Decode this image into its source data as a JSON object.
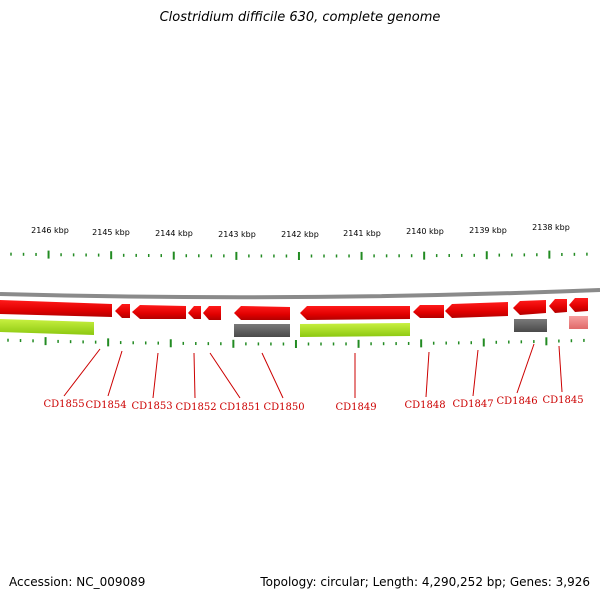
{
  "title": "Clostridium difficile 630, complete genome",
  "footer": {
    "accession": "Accession: NC_009089",
    "summary": "Topology: circular; Length: 4,290,252 bp; Genes: 3,926"
  },
  "scale_labels": [
    "2146 kbp",
    "2145 kbp",
    "2144 kbp",
    "2143 kbp",
    "2142 kbp",
    "2141 kbp",
    "2140 kbp",
    "2139 kbp",
    "2138 kbp"
  ],
  "genes": [
    {
      "name": "CD1855"
    },
    {
      "name": "CD1854"
    },
    {
      "name": "CD1853"
    },
    {
      "name": "CD1852"
    },
    {
      "name": "CD1851"
    },
    {
      "name": "CD1850"
    },
    {
      "name": "CD1849"
    },
    {
      "name": "CD1848"
    },
    {
      "name": "CD1847"
    },
    {
      "name": "CD1846"
    },
    {
      "name": "CD1845"
    }
  ],
  "colors": {
    "gene": "#ee0000",
    "gene_light": "#f08080",
    "feature_green": "#a8e020",
    "feature_gray": "#666666",
    "backbone": "#888888",
    "tick": "#228b22",
    "label": "#cc0000"
  }
}
